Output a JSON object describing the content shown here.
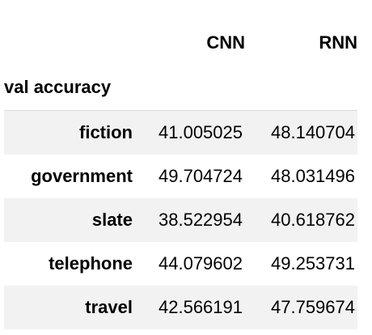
{
  "table": {
    "columns": [
      "CNN",
      "RNN"
    ],
    "index_name": "val accuracy",
    "rows": [
      {
        "label": "fiction",
        "values": [
          "41.005025",
          "48.140704"
        ]
      },
      {
        "label": "government",
        "values": [
          "49.704724",
          "48.031496"
        ]
      },
      {
        "label": "slate",
        "values": [
          "38.522954",
          "40.618762"
        ]
      },
      {
        "label": "telephone",
        "values": [
          "44.079602",
          "49.253731"
        ]
      },
      {
        "label": "travel",
        "values": [
          "42.566191",
          "47.759674"
        ]
      }
    ]
  },
  "colors": {
    "stripe": "#f2f2f2",
    "text": "#000000",
    "background": "#ffffff"
  }
}
